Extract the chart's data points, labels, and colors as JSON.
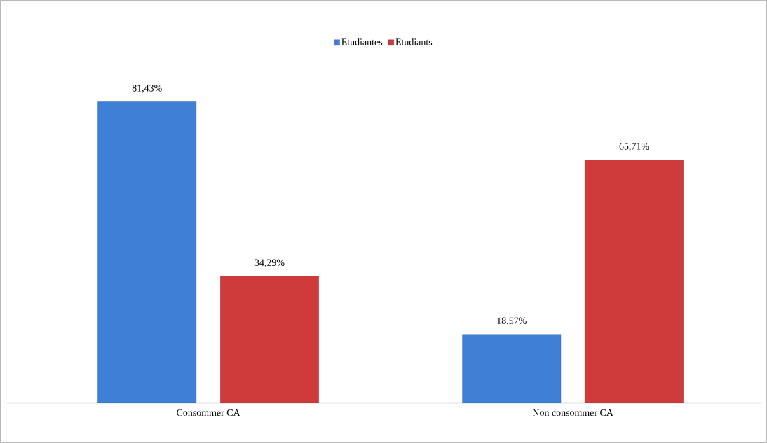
{
  "chart_data": {
    "type": "bar",
    "categories": [
      "Consommer CA",
      "Non consommer CA"
    ],
    "series": [
      {
        "name": "Etudiantes",
        "color": "#3f7fd6",
        "values": [
          81.43,
          18.57
        ],
        "value_labels": [
          "81,43%",
          "18,57%"
        ]
      },
      {
        "name": "Etudiants",
        "color": "#cf3b3b",
        "values": [
          34.29,
          65.71
        ],
        "value_labels": [
          "34,29%",
          "65,71%"
        ]
      }
    ],
    "legend": "top"
  }
}
